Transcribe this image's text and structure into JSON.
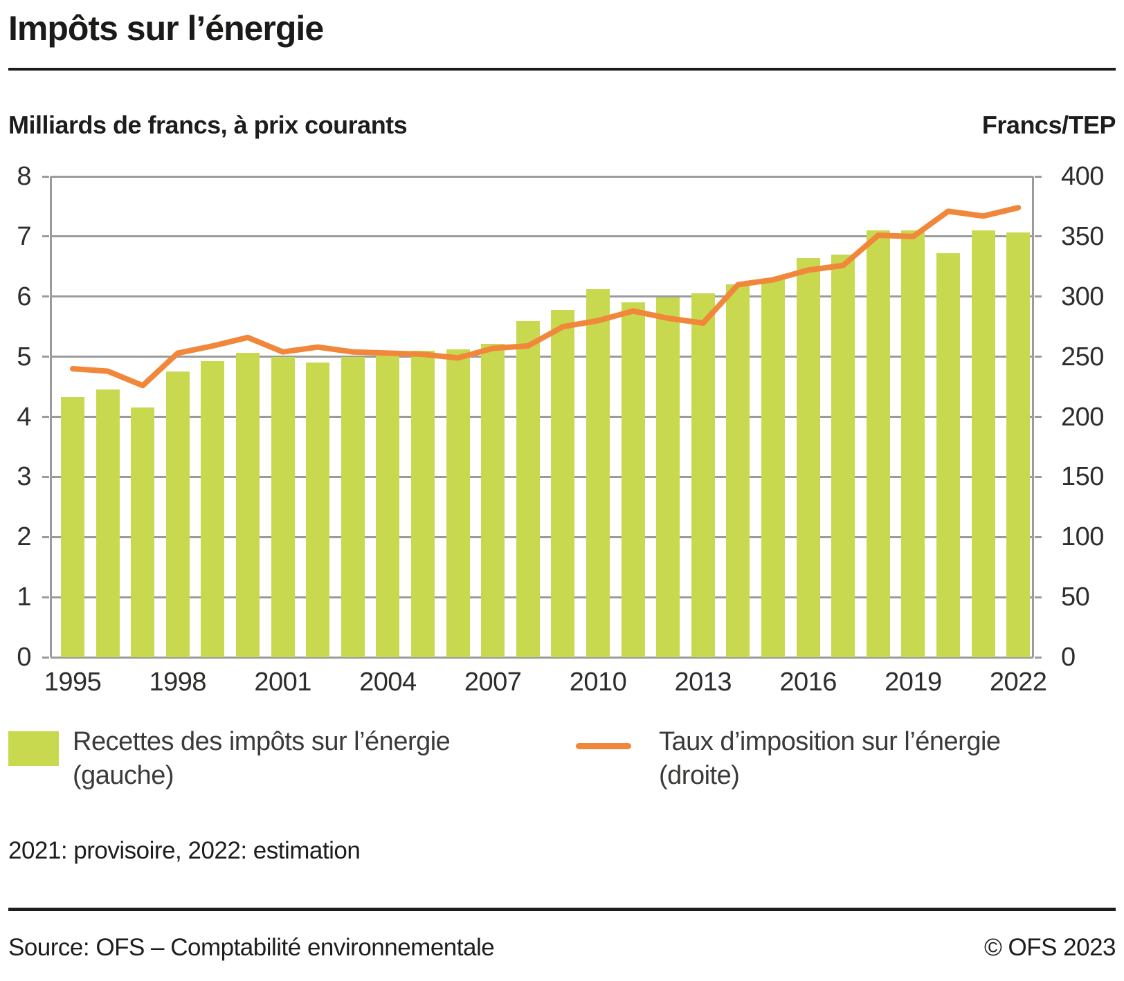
{
  "header": {
    "title": "Impôts sur l’énergie"
  },
  "subtitles": {
    "left": "Milliards de francs, à prix courants",
    "right": "Francs/TEP"
  },
  "colors": {
    "bar": "#c8d950",
    "line": "#f1873a",
    "grid": "#9b9b9b"
  },
  "chart_data": {
    "type": "bar",
    "subtype": "bar+line dual axis",
    "title": "Impôts sur l’énergie",
    "categories": [
      1995,
      1996,
      1997,
      1998,
      1999,
      2000,
      2001,
      2002,
      2003,
      2004,
      2005,
      2006,
      2007,
      2008,
      2009,
      2010,
      2011,
      2012,
      2013,
      2014,
      2015,
      2016,
      2017,
      2018,
      2019,
      2020,
      2021,
      2022
    ],
    "series": [
      {
        "name": "Recettes des impôts sur l’énergie (gauche)",
        "type": "bar",
        "axis": "left",
        "color": "#c8d950",
        "values": [
          4.33,
          4.45,
          4.15,
          4.75,
          4.93,
          5.07,
          5.0,
          4.9,
          5.0,
          5.03,
          5.1,
          5.12,
          5.22,
          5.6,
          5.78,
          6.12,
          5.9,
          5.98,
          6.06,
          6.2,
          6.3,
          6.64,
          6.7,
          7.1,
          7.1,
          6.72,
          7.1,
          7.07
        ]
      },
      {
        "name": "Taux d’imposition sur l’énergie (droite)",
        "type": "line",
        "axis": "right",
        "color": "#f1873a",
        "values": [
          240,
          238,
          226,
          253,
          259,
          266,
          254,
          258,
          254,
          253,
          252,
          249,
          257,
          259,
          275,
          280,
          288,
          282,
          278,
          310,
          314,
          322,
          326,
          351,
          350,
          371,
          367,
          374
        ]
      }
    ],
    "left_axis": {
      "label": "Milliards de francs, à prix courants",
      "min": 0,
      "max": 8,
      "step": 1,
      "tick_labels": [
        "0",
        "1",
        "2",
        "3",
        "4",
        "5",
        "6",
        "7",
        "8"
      ]
    },
    "right_axis": {
      "label": "Francs/TEP",
      "min": 0,
      "max": 400,
      "step": 50,
      "tick_labels": [
        "0",
        "50",
        "100",
        "150",
        "200",
        "250",
        "300",
        "350",
        "400"
      ]
    },
    "x_tick_labels": [
      "1995",
      "1998",
      "2001",
      "2004",
      "2007",
      "2010",
      "2013",
      "2016",
      "2019",
      "2022"
    ],
    "grid": "horizontal",
    "legend_position": "bottom"
  },
  "legend": {
    "items": [
      {
        "label": "Recettes des impôts sur l’énergie",
        "sublabel": "(gauche)",
        "swatch": "bar-swatch",
        "color": "#c8d950"
      },
      {
        "label": "Taux d’imposition sur l’énergie",
        "sublabel": "(droite)",
        "swatch": "line-swatch",
        "color": "#f1873a"
      }
    ]
  },
  "footnote": "2021: provisoire, 2022: estimation",
  "footer": {
    "source": "Source: OFS – Comptabilité environnementale",
    "copyright": "© OFS 2023"
  }
}
